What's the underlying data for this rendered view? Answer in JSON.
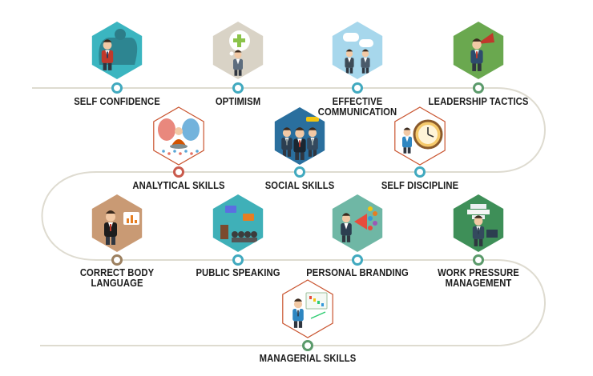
{
  "skills": [
    {
      "label": "SELF CONFIDENCE",
      "icon": "muscle-shadow-icon",
      "bg": "#3bb5c0"
    },
    {
      "label": "OPTIMISM",
      "icon": "positive-thought-icon",
      "bg": "#d9d3c6"
    },
    {
      "label": "EFFECTIVE\nCOMMUNICATION",
      "icon": "speech-bubbles-icon",
      "bg": "#a7d7ec"
    },
    {
      "label": "LEADERSHIP TACTICS",
      "icon": "leader-flag-icon",
      "bg": "#6aa84f"
    },
    {
      "label": "ANALYTICAL SKILLS",
      "icon": "brain-meditation-icon",
      "bg": "#ffffff"
    },
    {
      "label": "SOCIAL SKILLS",
      "icon": "group-people-icon",
      "bg": "#2a6f9e"
    },
    {
      "label": "SELF DISCIPLINE",
      "icon": "clock-icon",
      "bg": "#ffffff"
    },
    {
      "label": "CORRECT BODY\nLANGUAGE",
      "icon": "presenter-gesture-icon",
      "bg": "#c99a74"
    },
    {
      "label": "PUBLIC SPEAKING",
      "icon": "podium-audience-icon",
      "bg": "#3fb0b8"
    },
    {
      "label": "PERSONAL BRANDING",
      "icon": "megaphone-icon",
      "bg": "#6fb7a5"
    },
    {
      "label": "WORK PRESSURE\nMANAGEMENT",
      "icon": "stacked-work-icon",
      "bg": "#3e8f58"
    },
    {
      "label": "MANAGERIAL SKILLS",
      "icon": "chart-board-icon",
      "bg": "#ffffff"
    }
  ],
  "colors": {
    "path": "#dedbd0",
    "node_teal": "#41a9bf",
    "node_green": "#5b9a6b",
    "node_red": "#c95a4c",
    "node_brown": "#9c8060"
  }
}
